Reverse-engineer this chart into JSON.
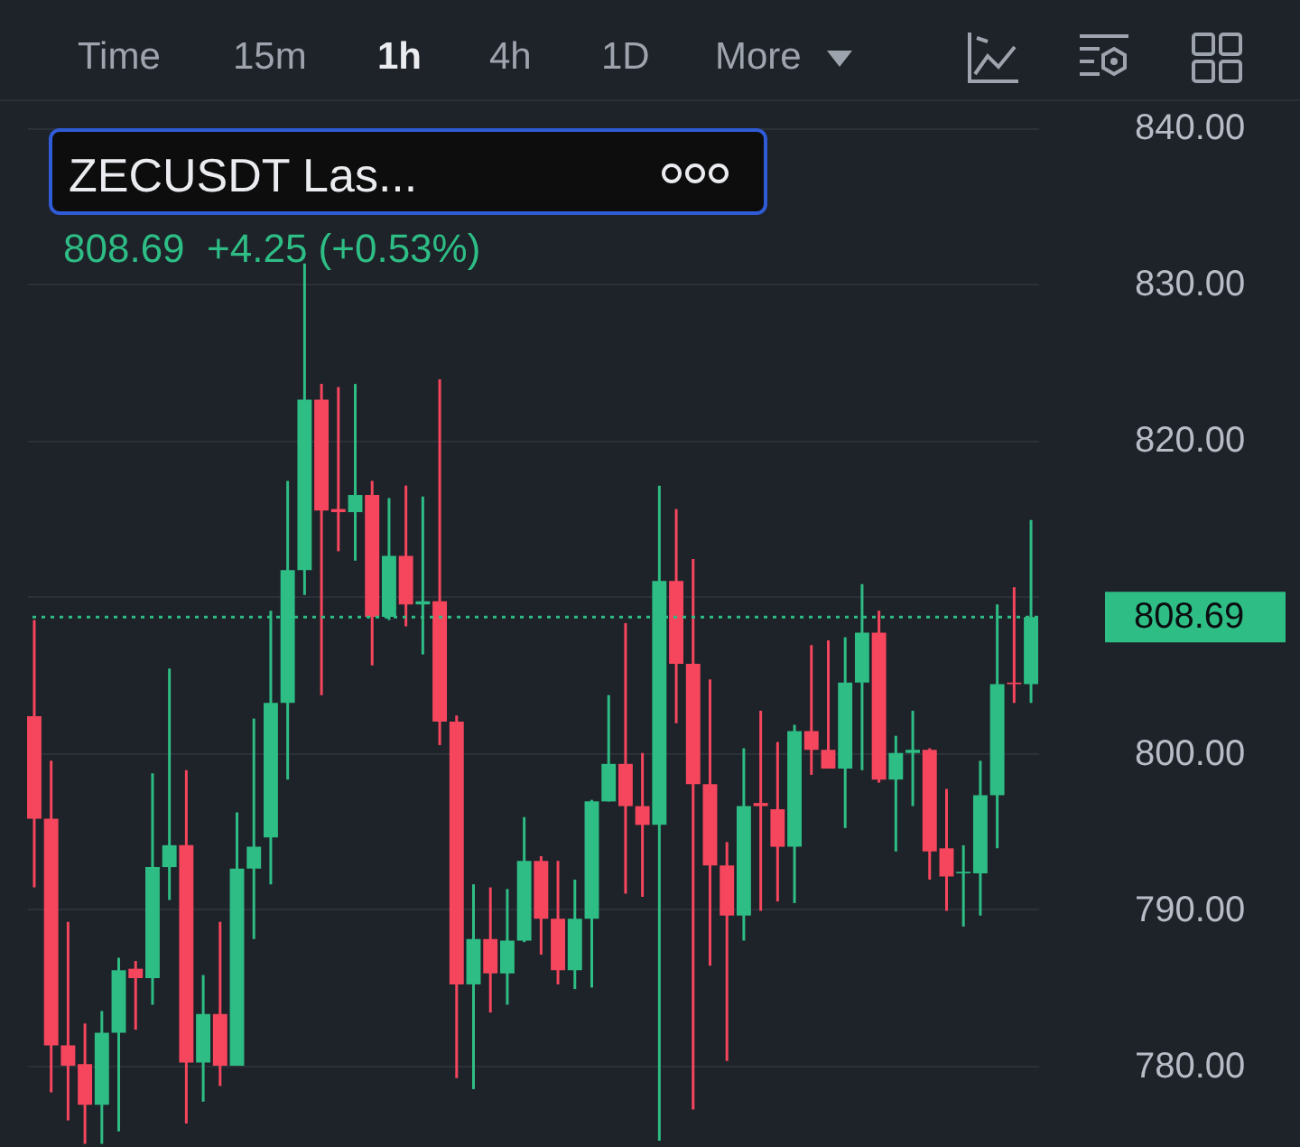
{
  "chart_data": {
    "type": "candlestick",
    "title": "ZECUSDT Las...",
    "subtitle": "808.69  +4.25 (+0.53%)",
    "annotations": [
      "Time",
      "15m",
      "1h",
      "4h",
      "1D",
      "More"
    ],
    "categories": [
      null,
      null,
      null,
      null,
      null,
      null,
      null,
      null,
      null,
      null,
      null,
      null,
      null,
      null,
      null,
      null,
      null,
      null,
      null,
      null,
      null,
      null,
      null,
      null,
      null,
      null,
      null,
      null,
      null,
      null,
      null,
      null,
      null,
      null,
      null,
      null,
      null,
      null,
      null,
      null,
      null,
      null,
      null,
      null,
      null,
      null,
      null,
      null,
      null,
      null,
      null,
      null,
      null,
      null,
      null,
      null,
      null,
      null,
      null,
      null
    ],
    "ohlc": [
      [
        802.35,
        808.5,
        791.4,
        795.8
      ],
      [
        795.8,
        799.5,
        778.3,
        781.3
      ],
      [
        781.3,
        789.2,
        776.5,
        780.0
      ],
      [
        780.1,
        782.7,
        775.0,
        777.5
      ],
      [
        777.5,
        783.5,
        775.0,
        782.1
      ],
      [
        782.1,
        786.9,
        775.8,
        786.1
      ],
      [
        786.2,
        786.7,
        782.3,
        785.6
      ],
      [
        785.6,
        798.7,
        783.9,
        792.7
      ],
      [
        792.7,
        805.4,
        790.6,
        794.1
      ],
      [
        794.1,
        798.9,
        776.3,
        780.2
      ],
      [
        780.2,
        785.8,
        777.7,
        783.3
      ],
      [
        783.3,
        789.2,
        778.7,
        780.0
      ],
      [
        780.0,
        796.2,
        780.0,
        792.6
      ],
      [
        792.6,
        802.2,
        788.1,
        794.0
      ],
      [
        794.6,
        809.1,
        791.6,
        803.2
      ],
      [
        803.2,
        817.4,
        798.3,
        811.7
      ],
      [
        811.7,
        831.3,
        810.1,
        822.6
      ],
      [
        822.6,
        823.6,
        803.7,
        815.5
      ],
      [
        815.6,
        823.4,
        812.9,
        815.4
      ],
      [
        815.4,
        823.6,
        812.3,
        816.5
      ],
      [
        816.5,
        817.4,
        805.6,
        808.7
      ],
      [
        808.7,
        816.3,
        808.5,
        812.6
      ],
      [
        812.6,
        817.1,
        808.1,
        809.5
      ],
      [
        809.5,
        816.4,
        806.3,
        809.7
      ],
      [
        809.7,
        823.9,
        800.5,
        802.0
      ],
      [
        802.0,
        802.4,
        779.2,
        785.2
      ],
      [
        785.2,
        791.6,
        778.5,
        788.1
      ],
      [
        788.1,
        791.4,
        783.4,
        785.9
      ],
      [
        785.9,
        791.3,
        783.9,
        788.0
      ],
      [
        788.0,
        795.9,
        787.9,
        793.1
      ],
      [
        793.1,
        793.4,
        787.1,
        789.4
      ],
      [
        789.4,
        793.1,
        785.2,
        786.1
      ],
      [
        786.1,
        791.9,
        784.9,
        789.4
      ],
      [
        789.4,
        797.0,
        785.0,
        796.9
      ],
      [
        796.9,
        803.7,
        796.9,
        799.3
      ],
      [
        799.3,
        808.3,
        791.0,
        796.6
      ],
      [
        796.6,
        800.0,
        790.8,
        795.4
      ],
      [
        795.4,
        817.1,
        775.2,
        811.0
      ],
      [
        811.0,
        815.6,
        801.9,
        805.7
      ],
      [
        805.7,
        812.4,
        777.2,
        798.0
      ],
      [
        798.0,
        804.7,
        786.4,
        792.8
      ],
      [
        792.8,
        794.3,
        780.3,
        789.6
      ],
      [
        789.6,
        800.3,
        788.0,
        796.6
      ],
      [
        796.8,
        802.7,
        789.9,
        796.6
      ],
      [
        796.4,
        800.7,
        790.5,
        794.0
      ],
      [
        794.0,
        801.8,
        790.4,
        801.4
      ],
      [
        801.4,
        806.9,
        798.6,
        800.2
      ],
      [
        800.2,
        807.2,
        799.0,
        799.0
      ],
      [
        799.0,
        807.4,
        795.2,
        804.5
      ],
      [
        804.5,
        810.8,
        798.9,
        807.7
      ],
      [
        807.7,
        809.1,
        798.1,
        798.3
      ],
      [
        798.3,
        801.1,
        793.7,
        800.0
      ],
      [
        800.0,
        802.7,
        796.6,
        800.2
      ],
      [
        800.2,
        800.3,
        791.9,
        793.7
      ],
      [
        793.9,
        797.7,
        789.9,
        792.1
      ],
      [
        792.3,
        794.1,
        788.9,
        792.4
      ],
      [
        792.3,
        799.5,
        789.6,
        797.3
      ],
      [
        797.3,
        809.5,
        793.9,
        804.4
      ],
      [
        804.5,
        810.6,
        803.2,
        804.4
      ],
      [
        804.4,
        814.9,
        803.2,
        808.69
      ]
    ],
    "colors": [
      "#f6465d",
      "#f6465d",
      "#f6465d",
      "#f6465d",
      "#2ebd85",
      "#2ebd85",
      "#f6465d",
      "#2ebd85",
      "#2ebd85",
      "#f6465d",
      "#2ebd85",
      "#f6465d",
      "#2ebd85",
      "#2ebd85",
      "#2ebd85",
      "#2ebd85",
      "#2ebd85",
      "#f6465d",
      "#f6465d",
      "#2ebd85",
      "#f6465d",
      "#2ebd85",
      "#f6465d",
      "#2ebd85",
      "#f6465d",
      "#f6465d",
      "#2ebd85",
      "#f6465d",
      "#2ebd85",
      "#2ebd85",
      "#f6465d",
      "#f6465d",
      "#2ebd85",
      "#2ebd85",
      "#2ebd85",
      "#f6465d",
      "#f6465d",
      "#2ebd85",
      "#f6465d",
      "#f6465d",
      "#f6465d",
      "#f6465d",
      "#2ebd85",
      "#f6465d",
      "#f6465d",
      "#2ebd85",
      "#f6465d",
      "#f6465d",
      "#2ebd85",
      "#2ebd85",
      "#f6465d",
      "#2ebd85",
      "#2ebd85",
      "#f6465d",
      "#f6465d",
      "#2ebd85",
      "#2ebd85",
      "#2ebd85",
      "#f6465d",
      "#2ebd85"
    ],
    "ylim": [
      774.8,
      841.8
    ],
    "yticks": [
      {
        "value": 780,
        "label": "780.00"
      },
      {
        "value": 790,
        "label": "790.00"
      },
      {
        "value": 800,
        "label": "800.00"
      },
      {
        "value": 810,
        "label": null
      },
      {
        "value": 820,
        "label": "820.00"
      },
      {
        "value": 830,
        "label": "830.00"
      },
      {
        "value": 840,
        "label": "840.00"
      }
    ],
    "tick_labels": "y",
    "grid": "y",
    "ref_lines": [
      {
        "axis": "y",
        "value": 808.69,
        "label": "808.69",
        "color": "#2ebd85",
        "line_style": "dotted"
      }
    ]
  }
}
